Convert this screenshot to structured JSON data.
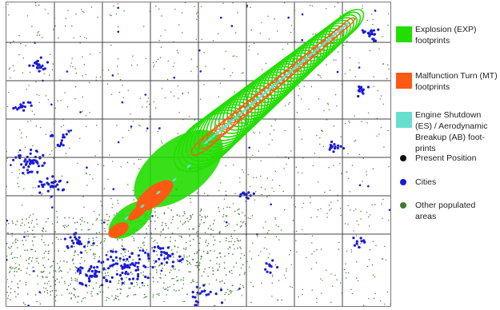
{
  "colors": {
    "explosion": "#22dd00",
    "malfunction": "#ff5a14",
    "shutdown": "#66e0cc",
    "present": "#111111",
    "cities": "#1a1ad8",
    "other_populated": "#3a7a30",
    "grid": "#444444"
  },
  "legend": {
    "items": [
      {
        "key": "explosion",
        "kind": "swatch",
        "label": "Explosion (EXP) footprints"
      },
      {
        "key": "malfunction",
        "kind": "swatch",
        "label": "Malfunction Turn (MT) footprints"
      },
      {
        "key": "shutdown",
        "kind": "swatch",
        "label": "Engine Shutdown (ES) / Aerodynamic Breakup (AB) foot-prints"
      },
      {
        "key": "present",
        "kind": "dot",
        "label": "Present Position"
      },
      {
        "key": "cities",
        "kind": "dot",
        "label": "Cities"
      },
      {
        "key": "other_populated",
        "kind": "dot",
        "label": "Other populated areas"
      }
    ]
  }
}
